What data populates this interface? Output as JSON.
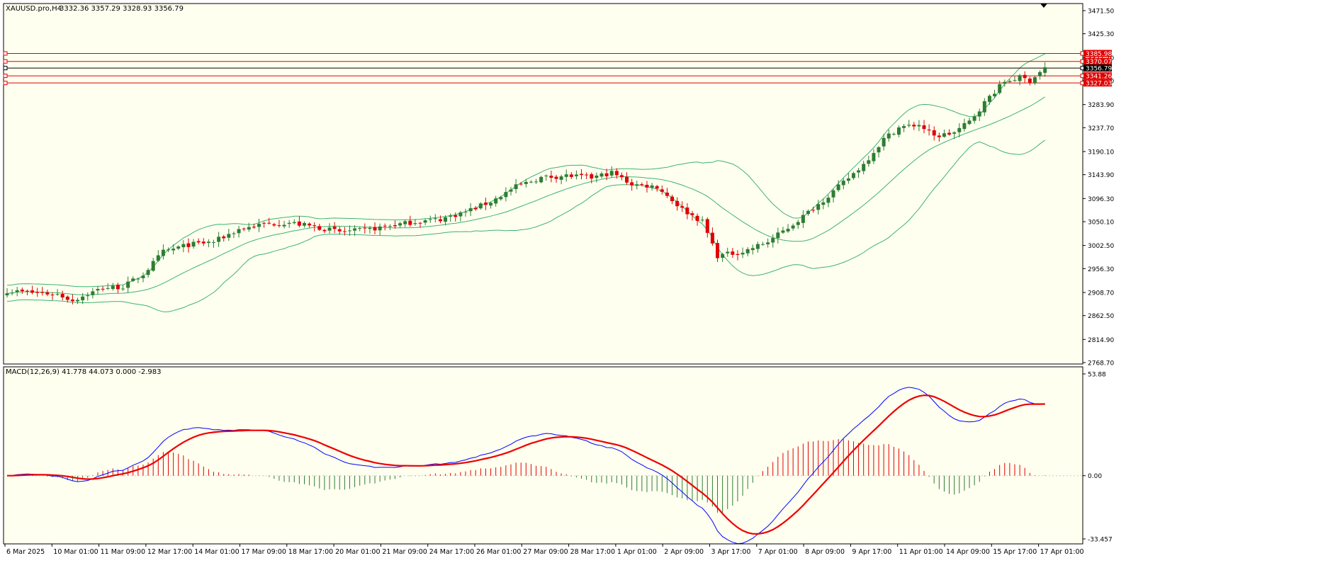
{
  "colors": {
    "background": "#fffff0",
    "bull_candle": "#2e7d32",
    "bear_candle": "#e00000",
    "bands": "#3cb371",
    "level_line": "#e00000",
    "current_line": "#000000",
    "macd_main": "#0000ff",
    "macd_signal": "#ee0000",
    "hist_pos": "#e00000",
    "hist_neg": "#2e7d32",
    "frame": "#000000"
  },
  "header": {
    "symbol_label": "XAUUSD.pro,H4",
    "ohlc_text": "3332.36 3357.29 3328.93 3356.79"
  },
  "macd_header": {
    "label": "MACD(12,26,9) 41.778 44.073 0.000 -2.983"
  },
  "price_axis_labels": [
    "3471.50",
    "3425.30",
    "3377.70",
    "3331.50",
    "3283.90",
    "3237.70",
    "3190.10",
    "3143.90",
    "3096.30",
    "3050.10",
    "3002.50",
    "2956.30",
    "2908.70",
    "2862.50",
    "2814.90",
    "2768.70"
  ],
  "macd_axis_labels": [
    "53.88",
    "0.00",
    "-33.457"
  ],
  "level_badges": [
    {
      "label": "3385.98",
      "value": 3385.98,
      "color": "#e00000"
    },
    {
      "label": "3370.07",
      "value": 3370.07,
      "color": "#e00000"
    },
    {
      "label": "3356.79",
      "value": 3356.79,
      "color": "#000000"
    },
    {
      "label": "3341.26",
      "value": 3341.26,
      "color": "#e00000"
    },
    {
      "label": "3327.03",
      "value": 3327.03,
      "color": "#e00000"
    }
  ],
  "time_labels": [
    "6 Mar 2025",
    "10 Mar 01:00",
    "11 Mar 09:00",
    "12 Mar 17:00",
    "14 Mar 01:00",
    "17 Mar 09:00",
    "18 Mar 17:00",
    "20 Mar 01:00",
    "21 Mar 09:00",
    "24 Mar 17:00",
    "26 Mar 01:00",
    "27 Mar 09:00",
    "28 Mar 17:00",
    "1 Apr 01:00",
    "2 Apr 09:00",
    "3 Apr 17:00",
    "7 Apr 01:00",
    "8 Apr 09:00",
    "9 Apr 17:00",
    "11 Apr 01:00",
    "14 Apr 09:00",
    "15 Apr 17:00",
    "17 Apr 01:00"
  ],
  "chart_data": [
    {
      "type": "candlestick",
      "title": "XAUUSD.pro,H4",
      "price_range": [
        2768.7,
        3471.5
      ],
      "anchors": [
        [
          0,
          2912
        ],
        [
          10,
          2905
        ],
        [
          13,
          2893
        ],
        [
          19,
          2918
        ],
        [
          23,
          2920
        ],
        [
          27,
          2945
        ],
        [
          31,
          2990
        ],
        [
          36,
          3004
        ],
        [
          41,
          3010
        ],
        [
          46,
          3035
        ],
        [
          51,
          3045
        ],
        [
          56,
          3048
        ],
        [
          61,
          3040
        ],
        [
          66,
          3030
        ],
        [
          71,
          3033
        ],
        [
          76,
          3042
        ],
        [
          81,
          3050
        ],
        [
          86,
          3055
        ],
        [
          91,
          3070
        ],
        [
          96,
          3090
        ],
        [
          101,
          3120
        ],
        [
          106,
          3138
        ],
        [
          111,
          3142
        ],
        [
          116,
          3138
        ],
        [
          120,
          3148
        ],
        [
          124,
          3125
        ],
        [
          129,
          3120
        ],
        [
          134,
          3075
        ],
        [
          138,
          3050
        ],
        [
          141,
          2982
        ],
        [
          146,
          2990
        ],
        [
          151,
          3010
        ],
        [
          156,
          3045
        ],
        [
          161,
          3085
        ],
        [
          166,
          3128
        ],
        [
          170,
          3165
        ],
        [
          174,
          3215
        ],
        [
          177,
          3238
        ],
        [
          181,
          3244
        ],
        [
          184,
          3220
        ],
        [
          188,
          3228
        ],
        [
          191,
          3250
        ],
        [
          195,
          3300
        ],
        [
          198,
          3330
        ],
        [
          201,
          3338
        ],
        [
          203,
          3332
        ],
        [
          206,
          3357
        ]
      ],
      "levels": [
        3385.98,
        3370.07,
        3356.79,
        3341.26,
        3327.03
      ],
      "bollinger_bands": {
        "period": 20,
        "deviation": 2
      }
    },
    {
      "type": "line",
      "title": "MACD(12,26,9) 41.778 44.073 0.000 -2.983",
      "ylim": [
        -33.457,
        53.88
      ],
      "series": [
        {
          "name": "MACD main",
          "last": 41.778
        },
        {
          "name": "Signal",
          "last": 44.073
        }
      ]
    }
  ]
}
